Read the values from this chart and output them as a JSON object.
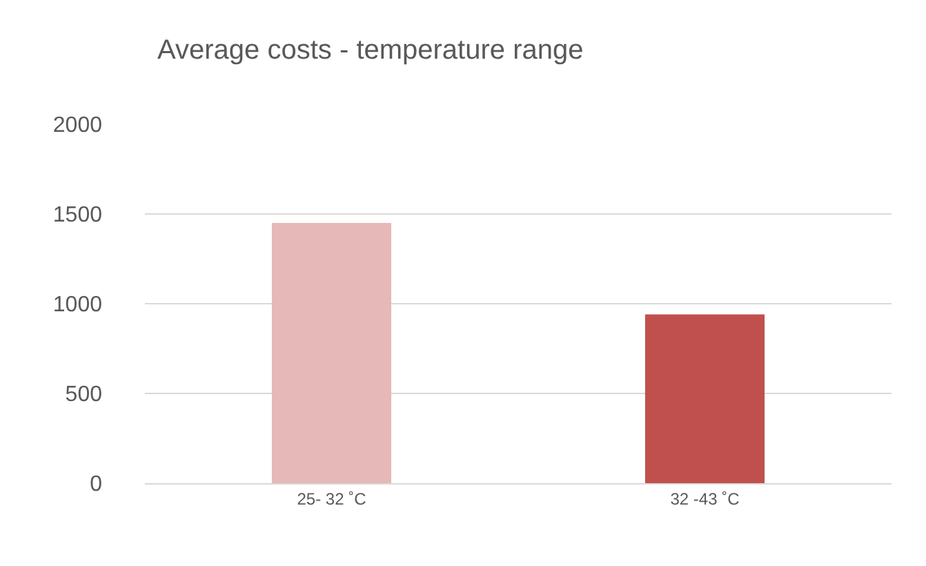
{
  "chart_data": {
    "type": "bar",
    "title": "Average costs - temperature range",
    "categories": [
      "25- 32 ˚C",
      "32 -43 ˚C"
    ],
    "values": [
      1450,
      940
    ],
    "colors": [
      "#e6b8b7",
      "#c0504d"
    ],
    "ylim": [
      0,
      2000
    ],
    "yticks": [
      0,
      500,
      1000,
      1500,
      2000
    ],
    "grid": "y"
  }
}
